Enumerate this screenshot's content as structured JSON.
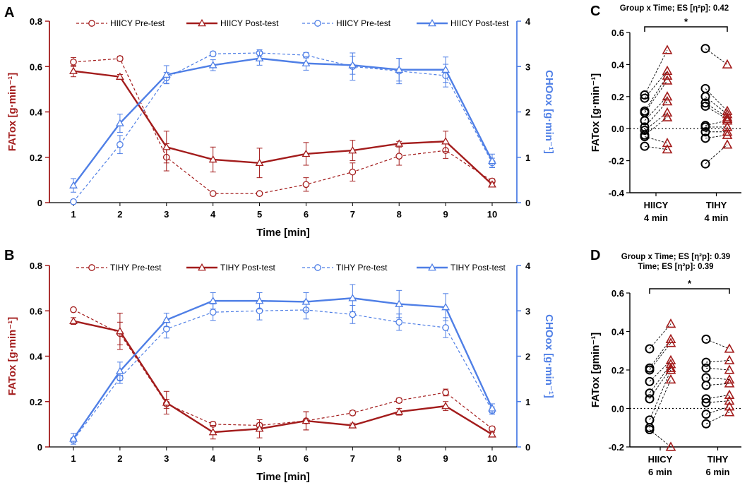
{
  "colors": {
    "red": "#a31c1c",
    "blue": "#4f7fe6",
    "black": "#000000"
  },
  "panel_letters": {
    "A": "A",
    "B": "B",
    "C": "C",
    "D": "D"
  },
  "chart_data": [
    {
      "panel": "A",
      "type": "line",
      "x": [
        1,
        2,
        3,
        4,
        5,
        6,
        7,
        8,
        9,
        10
      ],
      "xlabel": "Time [min]",
      "ylabel_left": "FATox [g·min⁻¹]",
      "ylabel_right": "CHOox [g·min⁻¹]",
      "ylim_left": [
        0,
        0.8
      ],
      "ylim_right": [
        0,
        4
      ],
      "yticks_left": [
        "0",
        "0.2",
        "0.4",
        "0.6",
        "0.8"
      ],
      "yticks_right": [
        "0",
        "1",
        "2",
        "3",
        "4"
      ],
      "series": [
        {
          "name": "HIICY Pre-test",
          "axis": "left",
          "color": "red",
          "style": "dashed",
          "marker": "circle",
          "values": [
            0.62,
            0.635,
            0.2,
            0.04,
            0.04,
            0.08,
            0.135,
            0.205,
            0.23,
            0.095
          ],
          "errors": [
            0.02,
            0.01,
            0.06,
            0.005,
            0.005,
            0.03,
            0.04,
            0.04,
            0.035,
            0.01
          ]
        },
        {
          "name": "HIICY Post-test",
          "axis": "left",
          "color": "red",
          "style": "solid",
          "marker": "triangle",
          "values": [
            0.58,
            0.555,
            0.245,
            0.19,
            0.175,
            0.215,
            0.23,
            0.26,
            0.27,
            0.08
          ],
          "errors": [
            0.025,
            0.01,
            0.07,
            0.055,
            0.065,
            0.05,
            0.045,
            0.01,
            0.045,
            0.01
          ]
        },
        {
          "name": "HIICY Pre-test",
          "axis": "right",
          "color": "blue",
          "style": "dashed",
          "marker": "circle",
          "values": [
            0.02,
            1.28,
            2.75,
            3.28,
            3.3,
            3.25,
            3.0,
            2.9,
            2.8,
            0.88
          ],
          "errors": [
            0.02,
            0.2,
            0.12,
            0.05,
            0.07,
            0.06,
            0.3,
            0.28,
            0.25,
            0.1
          ]
        },
        {
          "name": "HIICY Post-test",
          "axis": "right",
          "color": "blue",
          "style": "solid",
          "marker": "triangle",
          "values": [
            0.38,
            1.75,
            2.82,
            3.03,
            3.18,
            3.07,
            3.03,
            2.93,
            2.93,
            0.92
          ],
          "errors": [
            0.15,
            0.2,
            0.2,
            0.12,
            0.15,
            0.15,
            0.2,
            0.25,
            0.28,
            0.15
          ]
        }
      ]
    },
    {
      "panel": "B",
      "type": "line",
      "x": [
        1,
        2,
        3,
        4,
        5,
        6,
        7,
        8,
        9,
        10
      ],
      "xlabel": "Time [min]",
      "ylabel_left": "FATox [g·min⁻¹]",
      "ylabel_right": "CHOox [g·min⁻¹]",
      "ylim_left": [
        0,
        0.8
      ],
      "ylim_right": [
        0,
        4
      ],
      "yticks_left": [
        "0",
        "0.2",
        "0.4",
        "0.6",
        "0.8"
      ],
      "yticks_right": [
        "0",
        "1",
        "2",
        "3",
        "4"
      ],
      "series": [
        {
          "name": "TIHY Pre-test",
          "axis": "left",
          "color": "red",
          "style": "dashed",
          "marker": "circle",
          "values": [
            0.605,
            0.5,
            0.19,
            0.1,
            0.095,
            0.115,
            0.15,
            0.205,
            0.24,
            0.08
          ],
          "errors": [
            0.005,
            0.05,
            0.02,
            0.01,
            0.01,
            0.04,
            0.01,
            0.01,
            0.015,
            0.01
          ]
        },
        {
          "name": "TIHY Post-test",
          "axis": "left",
          "color": "red",
          "style": "solid",
          "marker": "triangle",
          "values": [
            0.555,
            0.51,
            0.195,
            0.065,
            0.08,
            0.115,
            0.095,
            0.155,
            0.18,
            0.055
          ],
          "errors": [
            0.015,
            0.08,
            0.05,
            0.03,
            0.04,
            0.04,
            0.01,
            0.015,
            0.02,
            0.01
          ]
        },
        {
          "name": "TIHY Pre-test",
          "axis": "right",
          "color": "blue",
          "style": "dashed",
          "marker": "circle",
          "values": [
            0.15,
            1.52,
            2.6,
            2.97,
            3.0,
            3.02,
            2.92,
            2.75,
            2.63,
            0.8
          ],
          "errors": [
            0.05,
            0.12,
            0.2,
            0.18,
            0.2,
            0.2,
            0.2,
            0.18,
            0.22,
            0.08
          ]
        },
        {
          "name": "TIHY Post-test",
          "axis": "right",
          "color": "blue",
          "style": "solid",
          "marker": "triangle",
          "values": [
            0.18,
            1.67,
            2.8,
            3.22,
            3.22,
            3.2,
            3.28,
            3.15,
            3.08,
            0.85
          ],
          "errors": [
            0.12,
            0.2,
            0.15,
            0.18,
            0.18,
            0.2,
            0.3,
            0.3,
            0.3,
            0.1
          ]
        }
      ]
    },
    {
      "panel": "C",
      "type": "scatter",
      "title": "Group x Time; ES [η²p]: 0.42",
      "ylabel": "FATox [g·min⁻¹]",
      "ylim": [
        -0.4,
        0.6
      ],
      "yticks": [
        "-0.4",
        "-0.2",
        "0.0",
        "0.2",
        "0.4",
        "0.6"
      ],
      "categories": [
        "HIICY\n4 min",
        "TIHY\n4 min"
      ],
      "significance": "*",
      "groups": [
        {
          "name": "HIICY",
          "pre": [
            0.21,
            0.19,
            0.11,
            0.1,
            0.05,
            0.01,
            -0.01,
            -0.04,
            -0.05,
            -0.11
          ],
          "post": [
            0.49,
            0.36,
            0.33,
            0.3,
            0.2,
            0.17,
            0.1,
            0.07,
            -0.09,
            -0.13
          ]
        },
        {
          "name": "TIHY",
          "pre": [
            0.5,
            0.25,
            0.2,
            0.16,
            0.14,
            0.02,
            0.01,
            -0.02,
            -0.06,
            -0.22
          ],
          "post": [
            0.4,
            0.11,
            0.09,
            0.07,
            0.06,
            0.05,
            0.01,
            -0.02,
            -0.04,
            -0.1
          ]
        }
      ]
    },
    {
      "panel": "D",
      "type": "scatter",
      "title": "Group x Time; ES [η²p]: 0.39",
      "subtitle": "Time; ES [η²p]: 0.39",
      "ylabel": "FATox [gmin⁻¹]",
      "ylim": [
        -0.2,
        0.6
      ],
      "yticks": [
        "-0.2",
        "0.0",
        "0.2",
        "0.4",
        "0.6"
      ],
      "categories": [
        "HIICY\n6 min",
        "TIHY\n6 min"
      ],
      "significance": "*",
      "groups": [
        {
          "name": "HIICY",
          "pre": [
            0.31,
            0.21,
            0.2,
            0.14,
            0.08,
            0.05,
            -0.06,
            -0.1,
            -0.11
          ],
          "post": [
            0.44,
            0.36,
            0.34,
            0.25,
            0.23,
            0.21,
            0.2,
            0.15,
            -0.2
          ]
        },
        {
          "name": "TIHY",
          "pre": [
            0.36,
            0.24,
            0.21,
            0.16,
            0.12,
            0.05,
            0.03,
            -0.03,
            -0.08
          ],
          "post": [
            0.31,
            0.25,
            0.2,
            0.15,
            0.13,
            0.07,
            0.04,
            0.01,
            -0.02
          ]
        }
      ]
    }
  ]
}
